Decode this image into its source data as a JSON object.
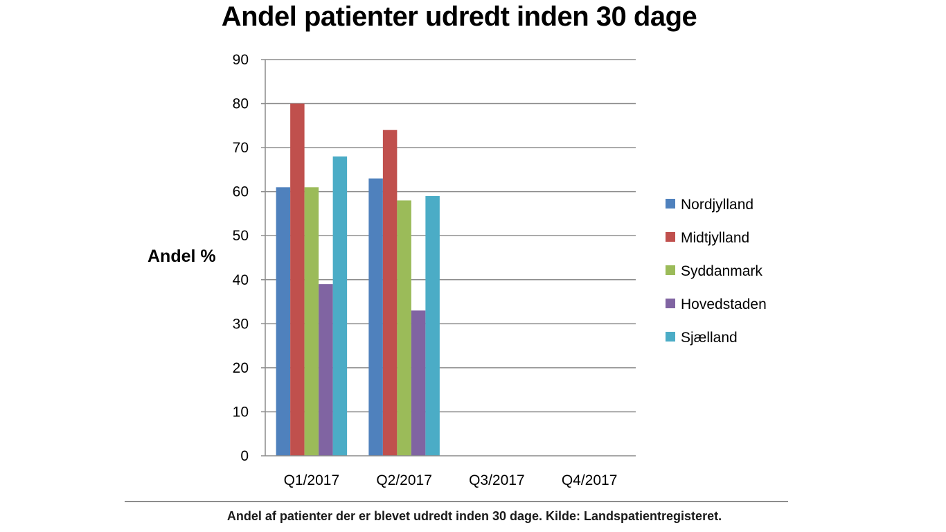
{
  "chart_data": {
    "type": "bar",
    "title": "Andel patienter udredt inden 30 dage",
    "ylabel": "Andel %",
    "xlabel": "",
    "categories": [
      "Q1/2017",
      "Q2/2017",
      "Q3/2017",
      "Q4/2017"
    ],
    "ylim": [
      0,
      90
    ],
    "yticks": [
      0,
      10,
      20,
      30,
      40,
      50,
      60,
      70,
      80,
      90
    ],
    "grid": true,
    "legend_position": "right",
    "series": [
      {
        "name": "Nordjylland",
        "color": "#4F81BD",
        "values": [
          61,
          63,
          null,
          null
        ]
      },
      {
        "name": "Midtjylland",
        "color": "#C0504D",
        "values": [
          80,
          74,
          null,
          null
        ]
      },
      {
        "name": "Syddanmark",
        "color": "#9BBB59",
        "values": [
          61,
          58,
          null,
          null
        ]
      },
      {
        "name": "Hovedstaden",
        "color": "#8064A2",
        "values": [
          39,
          33,
          null,
          null
        ]
      },
      {
        "name": "Sjælland",
        "color": "#4BACC6",
        "values": [
          68,
          59,
          null,
          null
        ]
      }
    ]
  },
  "caption": "Andel af patienter der er blevet udredt inden 30 dage. Kilde: Landspatientregisteret."
}
